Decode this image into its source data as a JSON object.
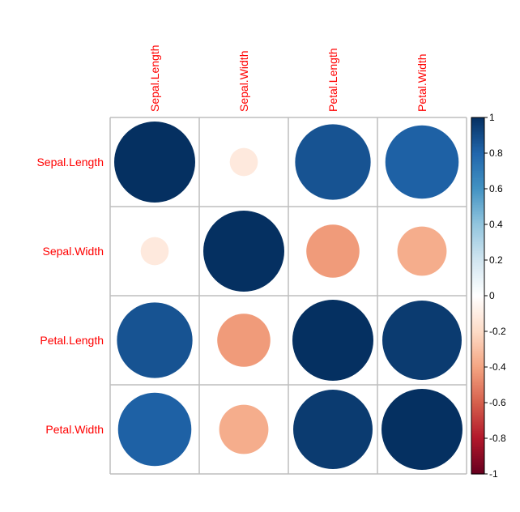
{
  "chart_data": {
    "type": "heatmap",
    "subtype": "correlation-circles",
    "variables": [
      "Sepal.Length",
      "Sepal.Width",
      "Petal.Length",
      "Petal.Width"
    ],
    "matrix": [
      [
        1.0,
        -0.12,
        0.87,
        0.82
      ],
      [
        -0.12,
        1.0,
        -0.43,
        -0.37
      ],
      [
        0.87,
        -0.43,
        1.0,
        0.96
      ],
      [
        0.82,
        -0.37,
        0.96,
        1.0
      ]
    ],
    "colorbar": {
      "range": [
        -1,
        1
      ],
      "ticks": [
        "1",
        "0.8",
        "0.6",
        "0.4",
        "0.2",
        "0",
        "-0.2",
        "-0.4",
        "-0.6",
        "-0.8",
        "-1"
      ]
    },
    "label_color": "#FF0000",
    "grid_color": "#BEBEBE",
    "palette": [
      "#67001F",
      "#B2182B",
      "#D6604D",
      "#F4A582",
      "#FDDBC7",
      "#FFFFFF",
      "#D1E5F0",
      "#92C5DE",
      "#4393C3",
      "#2166AC",
      "#053061"
    ]
  }
}
